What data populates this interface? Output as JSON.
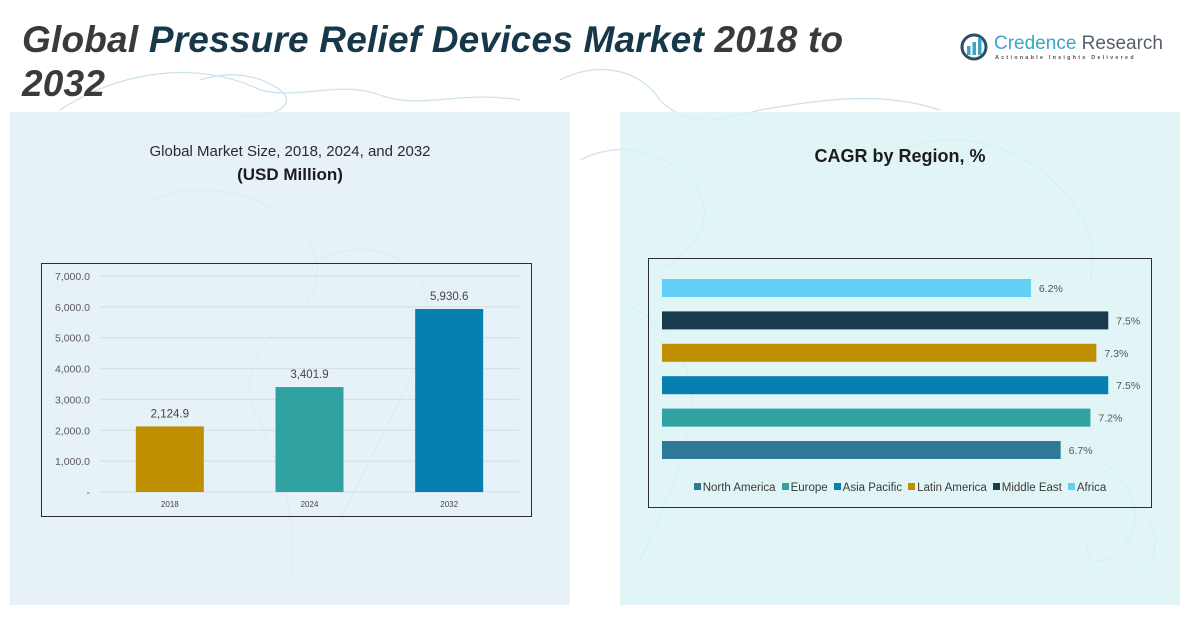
{
  "header": {
    "title_parts": [
      {
        "text": "Global ",
        "accent": false
      },
      {
        "text": "Pressure Relief Devices Market",
        "accent": true
      },
      {
        "text": " 2018 to 2032",
        "accent": false
      }
    ],
    "logo": {
      "name_part1": "Credence ",
      "name_part2": "Research",
      "tagline": "Actionable Insights Delivered",
      "icon": "bar-chart-magnifier-icon"
    }
  },
  "colors": {
    "title_dark": "#3a3a3a",
    "title_accent": "#17384a",
    "left_panel_bg": "#e2eef6",
    "right_panel_bg": "#daf2f4"
  },
  "chart_data": [
    {
      "type": "bar",
      "title": "Global Market Size, 2018, 2024, and 2032",
      "subtitle": "(USD Million)",
      "categories": [
        "2018",
        "2024",
        "2032"
      ],
      "values": [
        2124.9,
        3401.9,
        5930.6
      ],
      "value_labels": [
        "2,124.9",
        "3,401.9",
        "5,930.6"
      ],
      "colors": [
        "#bf8f00",
        "#31a2a2",
        "#0680b0"
      ],
      "ylim": [
        0,
        7000
      ],
      "yticks": [
        0,
        1000,
        2000,
        3000,
        4000,
        5000,
        6000,
        7000
      ],
      "ytick_labels": [
        "-",
        "1,000.0",
        "2,000.0",
        "3,000.0",
        "4,000.0",
        "5,000.0",
        "6,000.0",
        "7,000.0"
      ],
      "xlabel": "",
      "ylabel": "",
      "grid": true,
      "legend": "none"
    },
    {
      "type": "bar",
      "orientation": "horizontal",
      "title": "CAGR by Region, %",
      "categories": [
        "Africa",
        "Middle East",
        "Latin America",
        "Asia Pacific",
        "Europe",
        "North America"
      ],
      "values": [
        6.2,
        7.5,
        7.3,
        7.5,
        7.2,
        6.7
      ],
      "value_labels": [
        "6.2%",
        "7.5%",
        "7.3%",
        "7.5%",
        "7.2%",
        "6.7%"
      ],
      "colors": [
        "#62cff6",
        "#1a3b4b",
        "#bf8f00",
        "#0680b0",
        "#31a2a2",
        "#2e7898"
      ],
      "xlim": [
        0,
        8
      ],
      "grid": false,
      "legend": "bottom",
      "legend_entries": [
        {
          "label": "North America",
          "color": "#2e7898"
        },
        {
          "label": "Europe",
          "color": "#31a2a2"
        },
        {
          "label": "Asia Pacific",
          "color": "#0680b0"
        },
        {
          "label": "Latin America",
          "color": "#bf8f00"
        },
        {
          "label": "Middle East",
          "color": "#1a3b4b"
        },
        {
          "label": "Africa",
          "color": "#62cff6"
        }
      ]
    }
  ]
}
